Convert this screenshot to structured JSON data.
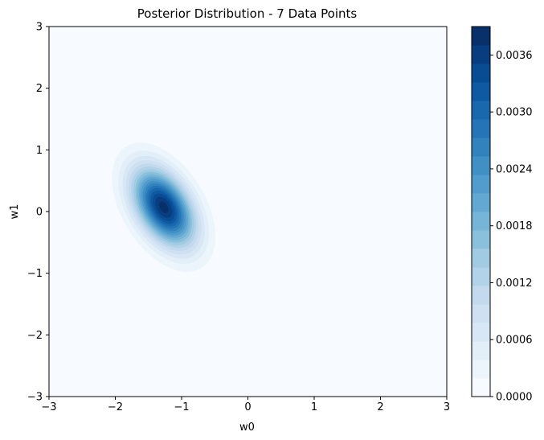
{
  "chart_data": {
    "type": "contour",
    "title": "Posterior Distribution - 7 Data Points",
    "xlabel": "w0",
    "ylabel": "w1",
    "xlim": [
      -3,
      3
    ],
    "ylim": [
      -3,
      3
    ],
    "xticks": [
      -3,
      -2,
      -1,
      0,
      1,
      2,
      3
    ],
    "yticks": [
      -3,
      -2,
      -1,
      0,
      1,
      2,
      3
    ],
    "grid": false,
    "colormap": "Blues",
    "colorbar": {
      "min": 0.0,
      "max": 0.0039,
      "levels": 20,
      "ticks": [
        0.0,
        0.0006,
        0.0012,
        0.0018,
        0.0024,
        0.003,
        0.0036
      ],
      "tick_labels": [
        "0.0000",
        "0.0006",
        "0.0012",
        "0.0018",
        "0.0024",
        "0.0030",
        "0.0036"
      ]
    },
    "distribution": {
      "kind": "bivariate-gaussian",
      "mean": [
        -1.27,
        0.07
      ],
      "std": [
        0.32,
        0.43
      ],
      "correlation": -0.45,
      "peak_density": 0.0038
    },
    "colors": {
      "background_low": "#f7fbff",
      "peak": "#08306b"
    }
  }
}
